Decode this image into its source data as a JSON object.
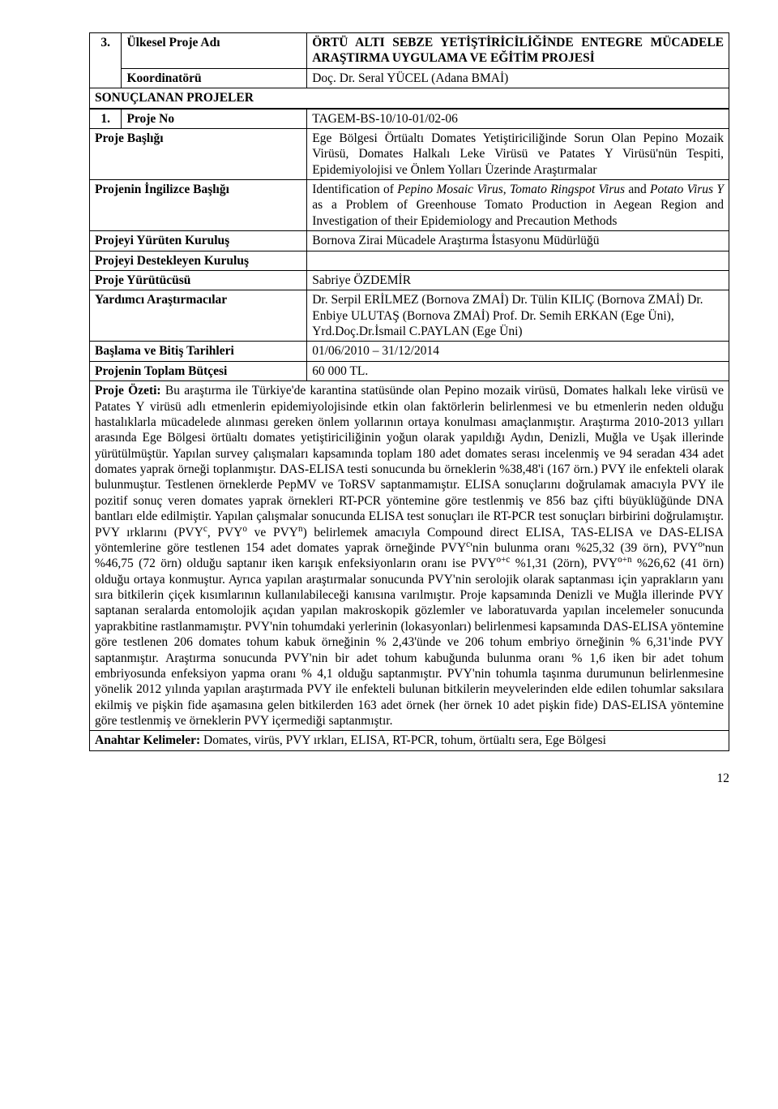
{
  "header": {
    "num": "3.",
    "projeAdi_label": "Ülkesel Proje Adı",
    "projeAdi_value": "ÖRTÜ ALTI SEBZE YETİŞTİRİCİLİĞİNDE ENTEGRE MÜCADELE ARAŞTIRMA UYGULAMA VE EĞİTİM PROJESİ",
    "koordinator_label": "Koordinatörü",
    "koordinator_value": "Doç. Dr. Seral YÜCEL (Adana BMAİ)",
    "sonuclanan": "SONUÇLANAN PROJELER"
  },
  "meta": {
    "num": "1.",
    "projeNo_label": "Proje No",
    "projeNo_value": "TAGEM-BS-10/10-01/02-06",
    "baslik_label": "Proje Başlığı",
    "baslik_value": "Ege Bölgesi Örtüaltı Domates Yetiştiriciliğinde Sorun Olan Pepino Mozaik Virüsü, Domates Halkalı Leke Virüsü ve Patates Y Virüsü'nün Tespiti, Epidemiyolojisi ve Önlem Yolları Üzerinde Araştırmalar",
    "ing_label": "Projenin İngilizce Başlığı",
    "ing_value_html": "Identification of <i>Pepino Mosaic Virus</i>, <i>Tomato Ringspot Virus</i> and <i>Potato Virus Y</i> as a Problem of Greenhouse Tomato Production in Aegean Region and Investigation of their Epidemiology and Precaution Methods",
    "yuruten_label": "Projeyi Yürüten Kuruluş",
    "yuruten_value": "Bornova Zirai Mücadele Araştırma İstasyonu Müdürlüğü",
    "destek_label": "Projeyi Destekleyen Kuruluş",
    "destek_value": "",
    "yurutucu_label": "Proje Yürütücüsü",
    "yurutucu_value": "Sabriye ÖZDEMİR",
    "yardimci_label": "Yardımcı Araştırmacılar",
    "yardimci_value": "Dr. Serpil ERİLMEZ (Bornova ZMAİ) Dr. Tülin KILIÇ  (Bornova ZMAİ) Dr. Enbiye ULUTAŞ (Bornova ZMAİ) Prof. Dr. Semih ERKAN (Ege Üni), Yrd.Doç.Dr.İsmail C.PAYLAN (Ege Üni)",
    "tarih_label": "Başlama ve Bitiş Tarihleri",
    "tarih_value": "01/06/2010 – 31/12/2014",
    "butce_label": "Projenin Toplam Bütçesi",
    "butce_value": "60 000 TL."
  },
  "ozet": {
    "label": "Proje Özeti:",
    "text_html": "Bu araştırma ile Türkiye'de karantina statüsünde olan Pepino mozaik virüsü, Domates halkalı leke virüsü ve Patates Y virüsü adlı etmenlerin epidemiyolojisinde etkin olan faktörlerin belirlenmesi ve bu etmenlerin neden olduğu hastalıklarla mücadelede alınması gereken önlem yollarının ortaya konulması amaçlanmıştır. Araştırma 2010-2013 yılları arasında Ege Bölgesi örtüaltı domates yetiştiriciliğinin yoğun olarak yapıldığı Aydın, Denizli, Muğla ve Uşak illerinde yürütülmüştür. Yapılan survey çalışmaları kapsamında toplam 180 adet domates serası incelenmiş ve 94 seradan 434 adet domates yaprak örneği toplanmıştır. DAS-ELISA testi sonucunda bu örneklerin %38,48'i (167 örn.) PVY ile enfekteli olarak bulunmuştur. Testlenen örneklerde PepMV ve ToRSV saptanmamıştır. ELISA sonuçlarını doğrulamak amacıyla PVY ile pozitif sonuç veren domates yaprak örnekleri RT-PCR yöntemine göre testlenmiş ve 856 baz çifti büyüklüğünde DNA bantları elde edilmiştir. Yapılan çalışmalar sonucunda ELISA test sonuçları ile RT-PCR test sonuçları birbirini doğrulamıştır. PVY ırklarını (PVY<sup>c</sup>, PVY<sup>o</sup> ve PVY<sup>n</sup>) belirlemek amacıyla Compound direct ELISA, TAS-ELISA ve DAS-ELISA yöntemlerine göre testlenen 154 adet domates yaprak örneğinde PVY<sup>c</sup>'nin bulunma oranı %25,32 (39 örn), PVY<sup>o</sup>'nun %46,75 (72 örn) olduğu saptanır iken karışık enfeksiyonların oranı ise PVY<sup>o+c</sup> %1,31 (2örn), PVY<sup>o+n</sup> %26,62 (41 örn) olduğu ortaya konmuştur. Ayrıca yapılan araştırmalar sonucunda PVY'nin serolojik olarak saptanması için yaprakların yanı sıra bitkilerin çiçek kısımlarının kullanılabileceği kanısına varılmıştır. Proje kapsamında Denizli ve Muğla illerinde PVY saptanan seralarda entomolojik açıdan yapılan makroskopik gözlemler ve laboratuvarda yapılan incelemeler sonucunda yaprakbitine rastlanmamıştır. PVY'nin tohumdaki yerlerinin (lokasyonları) belirlenmesi kapsamında DAS-ELISA yöntemine göre testlenen 206 domates tohum kabuk örneğinin % 2,43'ünde ve 206 tohum embriyo örneğinin % 6,31'inde PVY saptanmıştır. Araştırma sonucunda PVY'nin bir adet tohum kabuğunda bulunma oranı % 1,6 iken bir adet tohum embriyosunda enfeksiyon yapma oranı % 4,1 olduğu saptanmıştır. PVY'nin tohumla taşınma durumunun belirlenmesine yönelik 2012 yılında yapılan araştırmada PVY ile enfekteli bulunan bitkilerin meyvelerinden elde edilen tohumlar saksılara ekilmiş ve pişkin fide aşamasına gelen bitkilerden 163 adet örnek (her örnek 10 adet pişkin fide) DAS-ELISA yöntemine göre testlenmiş ve örneklerin PVY içermediği saptanmıştır."
  },
  "anahtar": {
    "label": "Anahtar Kelimeler:",
    "value": "Domates, virüs, PVY ırkları, ELISA, RT-PCR, tohum, örtüaltı sera, Ege Bölgesi"
  },
  "pageNumber": "12"
}
